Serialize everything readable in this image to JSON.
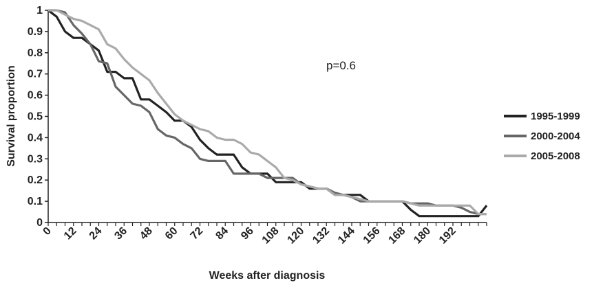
{
  "chart_data": {
    "type": "line",
    "title": "",
    "xlabel": "Weeks after diagnosis",
    "ylabel": "Survival proportion",
    "xlim": [
      0,
      208
    ],
    "ylim": [
      0,
      1
    ],
    "x_ticks": [
      0,
      12,
      24,
      36,
      48,
      60,
      72,
      84,
      96,
      108,
      120,
      132,
      144,
      156,
      168,
      180,
      192
    ],
    "y_ticks": [
      0,
      0.1,
      0.2,
      0.3,
      0.4,
      0.5,
      0.6,
      0.7,
      0.8,
      0.9,
      1
    ],
    "y_tick_labels": [
      "0",
      "0.1",
      "0.2",
      "0.3",
      "0.4",
      "0.5",
      "0.6",
      "0.7",
      "0.8",
      "0.9",
      "1"
    ],
    "annotation": "p=0.6",
    "legend_position": "right",
    "grid": false,
    "series": [
      {
        "name": "1995-1999",
        "color": "#222222",
        "x": [
          0,
          4,
          8,
          12,
          16,
          20,
          24,
          28,
          32,
          36,
          40,
          44,
          48,
          52,
          56,
          60,
          64,
          68,
          72,
          76,
          80,
          84,
          88,
          92,
          96,
          100,
          104,
          108,
          112,
          116,
          120,
          124,
          128,
          132,
          136,
          140,
          144,
          148,
          152,
          156,
          160,
          164,
          168,
          172,
          176,
          180,
          184,
          188,
          192,
          196,
          200,
          204,
          208
        ],
        "y": [
          1.0,
          0.97,
          0.9,
          0.87,
          0.87,
          0.84,
          0.81,
          0.71,
          0.71,
          0.68,
          0.68,
          0.58,
          0.58,
          0.55,
          0.52,
          0.48,
          0.48,
          0.45,
          0.39,
          0.35,
          0.32,
          0.32,
          0.32,
          0.26,
          0.23,
          0.23,
          0.23,
          0.19,
          0.19,
          0.19,
          0.19,
          0.16,
          0.16,
          0.16,
          0.13,
          0.13,
          0.13,
          0.13,
          0.1,
          0.1,
          0.1,
          0.1,
          0.1,
          0.06,
          0.03,
          0.03,
          0.03,
          0.03,
          0.03,
          0.03,
          0.03,
          0.03,
          0.08
        ]
      },
      {
        "name": "2000-2004",
        "color": "#666666",
        "x": [
          0,
          4,
          8,
          12,
          16,
          20,
          24,
          28,
          32,
          36,
          40,
          44,
          48,
          52,
          56,
          60,
          64,
          68,
          72,
          76,
          80,
          84,
          88,
          92,
          96,
          100,
          104,
          108,
          112,
          116,
          120,
          124,
          128,
          132,
          136,
          140,
          144,
          148,
          152,
          156,
          160,
          164,
          168,
          172,
          176,
          180,
          184,
          188,
          192,
          196,
          200,
          204,
          208
        ],
        "y": [
          1.0,
          1.0,
          0.99,
          0.93,
          0.89,
          0.84,
          0.76,
          0.75,
          0.64,
          0.6,
          0.56,
          0.55,
          0.52,
          0.44,
          0.41,
          0.4,
          0.37,
          0.35,
          0.3,
          0.29,
          0.29,
          0.29,
          0.23,
          0.23,
          0.23,
          0.23,
          0.21,
          0.21,
          0.21,
          0.21,
          0.18,
          0.17,
          0.16,
          0.16,
          0.14,
          0.13,
          0.12,
          0.1,
          0.1,
          0.1,
          0.1,
          0.1,
          0.1,
          0.09,
          0.09,
          0.09,
          0.08,
          0.08,
          0.08,
          0.07,
          0.05,
          0.04,
          0.04
        ]
      },
      {
        "name": "2005-2008",
        "color": "#aaaaaa",
        "x": [
          0,
          4,
          8,
          12,
          16,
          20,
          24,
          28,
          32,
          36,
          40,
          44,
          48,
          52,
          56,
          60,
          64,
          68,
          72,
          76,
          80,
          84,
          88,
          92,
          96,
          100,
          104,
          108,
          112,
          116,
          120,
          124,
          128,
          132,
          136,
          140,
          144,
          148,
          152,
          156,
          160,
          164,
          168,
          172,
          176,
          180,
          184,
          188,
          192,
          196,
          200,
          204,
          208
        ],
        "y": [
          1.0,
          1.0,
          0.98,
          0.96,
          0.95,
          0.93,
          0.91,
          0.84,
          0.82,
          0.77,
          0.73,
          0.7,
          0.67,
          0.61,
          0.56,
          0.51,
          0.48,
          0.46,
          0.44,
          0.43,
          0.4,
          0.39,
          0.39,
          0.37,
          0.33,
          0.32,
          0.29,
          0.26,
          0.21,
          0.2,
          0.18,
          0.17,
          0.16,
          0.16,
          0.13,
          0.13,
          0.12,
          0.11,
          0.1,
          0.1,
          0.1,
          0.1,
          0.1,
          0.09,
          0.08,
          0.08,
          0.08,
          0.08,
          0.08,
          0.08,
          0.08,
          0.04,
          0.04
        ]
      }
    ]
  }
}
